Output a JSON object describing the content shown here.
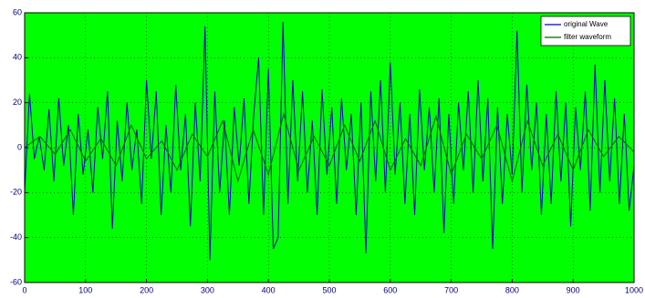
{
  "chart_data": {
    "type": "line",
    "series": [
      {
        "name": "original Wave",
        "color": "#0000c8",
        "x": [
          0,
          8,
          16,
          24,
          32,
          40,
          48,
          56,
          64,
          72,
          80,
          88,
          96,
          104,
          112,
          120,
          128,
          136,
          144,
          152,
          160,
          168,
          176,
          184,
          192,
          200,
          208,
          216,
          224,
          232,
          240,
          248,
          256,
          264,
          272,
          280,
          288,
          296,
          304,
          312,
          320,
          328,
          336,
          344,
          352,
          360,
          368,
          376,
          384,
          392,
          400,
          408,
          416,
          424,
          432,
          440,
          448,
          456,
          464,
          472,
          480,
          488,
          496,
          504,
          512,
          520,
          528,
          536,
          544,
          552,
          560,
          568,
          576,
          584,
          592,
          600,
          608,
          616,
          624,
          632,
          640,
          648,
          656,
          664,
          672,
          680,
          688,
          696,
          704,
          712,
          720,
          728,
          736,
          744,
          752,
          760,
          768,
          776,
          784,
          792,
          800,
          808,
          816,
          824,
          832,
          840,
          848,
          856,
          864,
          872,
          880,
          888,
          896,
          904,
          912,
          920,
          928,
          936,
          944,
          952,
          960,
          968,
          976,
          984,
          992,
          1000
        ],
        "values": [
          -20,
          24,
          -5,
          5,
          -10,
          17,
          -15,
          22,
          -8,
          10,
          -30,
          15,
          -12,
          8,
          -20,
          18,
          -5,
          25,
          -36,
          12,
          -15,
          20,
          -10,
          8,
          -25,
          30,
          -5,
          25,
          -30,
          10,
          -20,
          28,
          -10,
          15,
          -35,
          20,
          -15,
          54,
          -50,
          25,
          -20,
          12,
          -30,
          18,
          -8,
          22,
          -25,
          15,
          40,
          -30,
          35,
          -45,
          -40,
          56,
          -25,
          30,
          -15,
          25,
          -20,
          12,
          -30,
          26,
          -12,
          18,
          -25,
          22,
          -10,
          15,
          -30,
          20,
          -47,
          25,
          -15,
          30,
          -20,
          38,
          -12,
          20,
          -25,
          15,
          -30,
          26,
          -10,
          18,
          -20,
          22,
          -38,
          15,
          -25,
          20,
          -10,
          25,
          -20,
          30,
          -15,
          22,
          -45,
          18,
          -25,
          15,
          -12,
          52,
          -20,
          28,
          -10,
          20,
          -30,
          15,
          -25,
          25,
          -15,
          20,
          -35,
          18,
          -10,
          25,
          -28,
          37,
          -20,
          30,
          -15,
          22,
          -25,
          15,
          -28,
          -8
        ]
      },
      {
        "name": "filter waveform",
        "color": "#006400",
        "x": [
          0,
          25,
          50,
          75,
          100,
          125,
          150,
          175,
          200,
          225,
          250,
          275,
          300,
          325,
          350,
          375,
          400,
          425,
          450,
          475,
          500,
          525,
          550,
          575,
          600,
          625,
          650,
          675,
          700,
          725,
          750,
          775,
          800,
          825,
          850,
          875,
          900,
          925,
          950,
          975,
          1000
        ],
        "values": [
          0,
          5,
          -3,
          8,
          -6,
          4,
          -8,
          10,
          -5,
          3,
          -10,
          6,
          -4,
          12,
          -15,
          8,
          -12,
          15,
          -10,
          5,
          -8,
          10,
          -6,
          12,
          -10,
          4,
          -8,
          14,
          -12,
          6,
          -5,
          10,
          -15,
          12,
          -8,
          6,
          -10,
          8,
          -4,
          5,
          -2
        ]
      }
    ],
    "xlim": [
      0,
      1000
    ],
    "xticks": [
      0,
      100,
      200,
      300,
      400,
      500,
      600,
      700,
      800,
      900,
      1000
    ],
    "ylim": [
      -60,
      60
    ],
    "yticks": [
      -60,
      -40,
      -20,
      0,
      20,
      40,
      60
    ],
    "grid": true,
    "background": "#00ff00",
    "legend": "upper right"
  }
}
